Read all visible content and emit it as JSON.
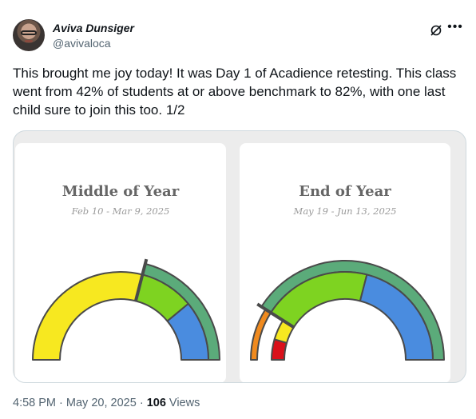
{
  "author": {
    "display_name": "Aviva Dunsiger",
    "handle": "@avivaloca"
  },
  "icons": {
    "grok": "grok-slash-circle-icon",
    "more": "more-horizontal-icon"
  },
  "tweet": {
    "text": "This brought me joy today! It was Day 1 of Acadience retesting. This class went from 42% of students at or above benchmark to 82%, with one last child sure to join this too. 1/2"
  },
  "charts": [
    {
      "title": "Middle of Year",
      "dates": "Feb 10 - Mar 9, 2025"
    },
    {
      "title": "End of Year",
      "dates": "May 19 - Jun 13, 2025"
    }
  ],
  "chart_data": [
    {
      "type": "pie",
      "title": "Middle of Year",
      "subtitle": "Feb 10 - Mar 9, 2025",
      "style": "half-donut gauge",
      "categories": [
        "yellow",
        "green",
        "blue"
      ],
      "values": [
        58,
        20,
        22
      ],
      "colors": [
        "#f7e820",
        "#7ed321",
        "#4a8cdf"
      ],
      "outer_band": {
        "color": "#5bab7a",
        "from_percent": 58,
        "to_percent": 100
      }
    },
    {
      "type": "pie",
      "title": "End of Year",
      "subtitle": "May 19 - Jun 13, 2025",
      "style": "half-donut gauge",
      "categories": [
        "red",
        "yellow",
        "green",
        "blue"
      ],
      "values": [
        9,
        9,
        40,
        42
      ],
      "colors": [
        "#d9101a",
        "#f7e820",
        "#7ed321",
        "#4a8cdf"
      ],
      "outer_band": {
        "color": "#5bab7a",
        "from_percent": 18,
        "to_percent": 100
      },
      "red_band": {
        "color": "#f08a1e",
        "from_percent": 0,
        "to_percent": 18
      }
    }
  ],
  "footer": {
    "time": "4:58 PM",
    "separator": "·",
    "date": "May 20, 2025",
    "views_count": "106",
    "views_label": "Views"
  }
}
